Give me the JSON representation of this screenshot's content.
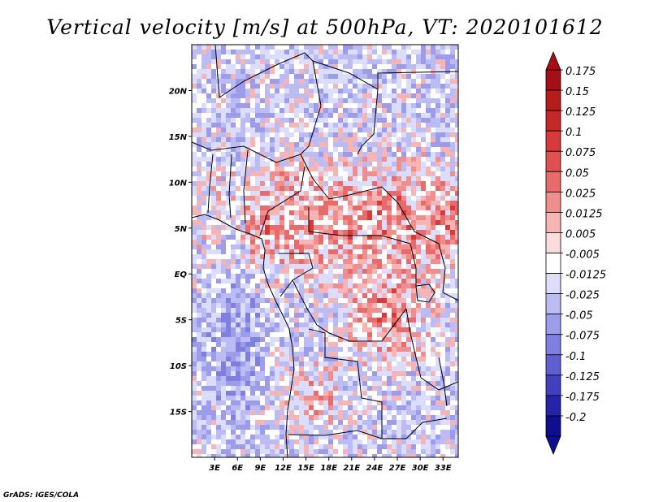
{
  "chart_data": {
    "type": "heatmap",
    "title": "Vertical velocity [m/s] at 500hPa, VT: 2020101612",
    "xlabel": "",
    "ylabel": "",
    "x_ticks": [
      "3E",
      "6E",
      "9E",
      "12E",
      "15E",
      "18E",
      "21E",
      "24E",
      "27E",
      "30E",
      "33E"
    ],
    "x_tick_values": [
      3,
      6,
      9,
      12,
      15,
      18,
      21,
      24,
      27,
      30,
      33
    ],
    "y_ticks": [
      "20N",
      "15N",
      "10N",
      "5N",
      "EQ",
      "5S",
      "10S",
      "15S"
    ],
    "y_tick_values": [
      20,
      15,
      10,
      5,
      0,
      -5,
      -10,
      -15
    ],
    "xlim": [
      0,
      35
    ],
    "ylim": [
      -20,
      25
    ],
    "colorbar": {
      "labels": [
        "0.175",
        "0.15",
        "0.125",
        "0.1",
        "0.075",
        "0.05",
        "0.025",
        "0.0125",
        "0.005",
        "-0.005",
        "-0.0125",
        "-0.025",
        "-0.05",
        "-0.075",
        "-0.1",
        "-0.125",
        "-0.175",
        "-0.2"
      ],
      "colors": [
        "#a50f15",
        "#b71c1c",
        "#c62828",
        "#d73a3a",
        "#e05050",
        "#e86b6b",
        "#f08d8d",
        "#f6b4b4",
        "#fbdcdc",
        "#ffffff",
        "#dcdcfb",
        "#bcbcf4",
        "#9c9ceb",
        "#7f7fe0",
        "#5f5fd2",
        "#4040c0",
        "#2424a8",
        "#0e0e90"
      ]
    },
    "field": {
      "palette_pos": [
        "#f6b4b4",
        "#f08d8d",
        "#e86b6b",
        "#d73a3a"
      ],
      "palette_neg": [
        "#dcdcfb",
        "#bcbcf4",
        "#9c9ceb",
        "#7f7fe0"
      ],
      "land_bg": "#c9c9f3"
    }
  },
  "credit": "GrADS: IGES/COLA"
}
